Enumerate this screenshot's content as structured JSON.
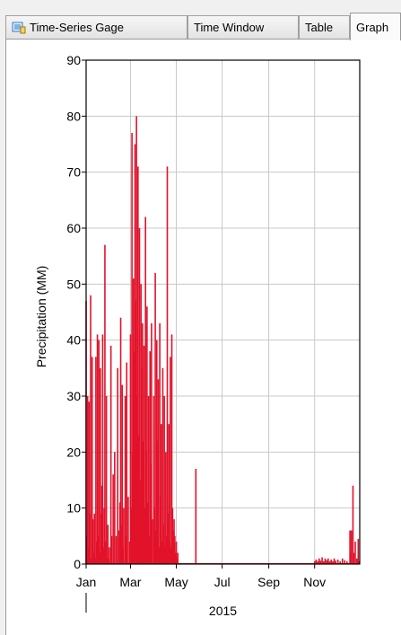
{
  "tabs": [
    {
      "label": "Time-Series Gage",
      "icon": "gage-icon",
      "active": false
    },
    {
      "label": "Time Window",
      "active": false
    },
    {
      "label": "Table",
      "active": false
    },
    {
      "label": "Graph",
      "active": true
    }
  ],
  "colors": {
    "series": "#e2122b",
    "grid": "#c8c8c8"
  },
  "chart_data": {
    "type": "bar",
    "ylabel": "Precipitation (MM)",
    "ylim": [
      0,
      90
    ],
    "yticks": [
      0,
      10,
      20,
      30,
      40,
      50,
      60,
      70,
      80,
      90
    ],
    "xlim": [
      "2015-01-01",
      "2015-12-31"
    ],
    "xticks": [
      {
        "date": "2015-01-01",
        "label": "Jan"
      },
      {
        "date": "2015-03-01",
        "label": "Mar"
      },
      {
        "date": "2015-05-01",
        "label": "May"
      },
      {
        "date": "2015-07-01",
        "label": "Jul"
      },
      {
        "date": "2015-09-01",
        "label": "Sep"
      },
      {
        "date": "2015-11-01",
        "label": "Nov"
      }
    ],
    "year_label": "2015",
    "grid": true,
    "series": [
      {
        "values": [
          [
            "2015-01-01",
            47
          ],
          [
            "2015-01-02",
            5
          ],
          [
            "2015-01-03",
            30
          ],
          [
            "2015-01-04",
            3
          ],
          [
            "2015-01-05",
            29
          ],
          [
            "2015-01-06",
            9
          ],
          [
            "2015-01-07",
            48
          ],
          [
            "2015-01-08",
            1
          ],
          [
            "2015-01-09",
            37
          ],
          [
            "2015-01-10",
            8
          ],
          [
            "2015-01-11",
            2
          ],
          [
            "2015-01-12",
            9
          ],
          [
            "2015-01-13",
            1
          ],
          [
            "2015-01-14",
            37
          ],
          [
            "2015-01-15",
            4
          ],
          [
            "2015-01-16",
            41
          ],
          [
            "2015-01-17",
            5
          ],
          [
            "2015-01-18",
            40
          ],
          [
            "2015-01-19",
            2
          ],
          [
            "2015-01-20",
            35
          ],
          [
            "2015-01-21",
            9
          ],
          [
            "2015-01-22",
            14
          ],
          [
            "2015-01-23",
            41
          ],
          [
            "2015-01-24",
            3
          ],
          [
            "2015-01-25",
            10
          ],
          [
            "2015-01-26",
            57
          ],
          [
            "2015-01-27",
            4
          ],
          [
            "2015-01-28",
            30
          ],
          [
            "2015-01-29",
            1
          ],
          [
            "2015-01-30",
            7
          ],
          [
            "2015-01-31",
            1
          ],
          [
            "2015-02-01",
            3
          ],
          [
            "2015-02-03",
            39
          ],
          [
            "2015-02-04",
            5
          ],
          [
            "2015-02-06",
            16
          ],
          [
            "2015-02-08",
            20
          ],
          [
            "2015-02-10",
            5
          ],
          [
            "2015-02-12",
            35
          ],
          [
            "2015-02-14",
            6
          ],
          [
            "2015-02-15",
            11
          ],
          [
            "2015-02-16",
            44
          ],
          [
            "2015-02-17",
            7
          ],
          [
            "2015-02-18",
            32
          ],
          [
            "2015-02-19",
            3
          ],
          [
            "2015-02-20",
            10
          ],
          [
            "2015-02-22",
            30
          ],
          [
            "2015-02-23",
            5
          ],
          [
            "2015-02-24",
            36
          ],
          [
            "2015-02-26",
            12
          ],
          [
            "2015-02-28",
            4
          ],
          [
            "2015-03-01",
            41
          ],
          [
            "2015-03-02",
            10
          ],
          [
            "2015-03-03",
            77
          ],
          [
            "2015-03-04",
            20
          ],
          [
            "2015-03-05",
            51
          ],
          [
            "2015-03-06",
            38
          ],
          [
            "2015-03-07",
            75
          ],
          [
            "2015-03-08",
            47
          ],
          [
            "2015-03-09",
            80
          ],
          [
            "2015-03-10",
            30
          ],
          [
            "2015-03-11",
            71
          ],
          [
            "2015-03-12",
            23
          ],
          [
            "2015-03-13",
            60
          ],
          [
            "2015-03-14",
            15
          ],
          [
            "2015-03-15",
            50
          ],
          [
            "2015-03-16",
            35
          ],
          [
            "2015-03-17",
            43
          ],
          [
            "2015-03-18",
            22
          ],
          [
            "2015-03-19",
            39
          ],
          [
            "2015-03-20",
            10
          ],
          [
            "2015-03-21",
            62
          ],
          [
            "2015-03-22",
            20
          ],
          [
            "2015-03-23",
            46
          ],
          [
            "2015-03-24",
            11
          ],
          [
            "2015-03-25",
            30
          ],
          [
            "2015-03-26",
            5
          ],
          [
            "2015-03-27",
            38
          ],
          [
            "2015-03-28",
            18
          ],
          [
            "2015-03-29",
            43
          ],
          [
            "2015-03-30",
            8
          ],
          [
            "2015-04-01",
            30
          ],
          [
            "2015-04-02",
            10
          ],
          [
            "2015-04-03",
            52
          ],
          [
            "2015-04-04",
            6
          ],
          [
            "2015-04-05",
            40
          ],
          [
            "2015-04-06",
            22
          ],
          [
            "2015-04-07",
            33
          ],
          [
            "2015-04-08",
            3
          ],
          [
            "2015-04-09",
            43
          ],
          [
            "2015-04-10",
            12
          ],
          [
            "2015-04-11",
            25
          ],
          [
            "2015-04-12",
            4
          ],
          [
            "2015-04-13",
            35
          ],
          [
            "2015-04-14",
            7
          ],
          [
            "2015-04-15",
            30
          ],
          [
            "2015-04-16",
            3
          ],
          [
            "2015-04-17",
            20
          ],
          [
            "2015-04-18",
            5
          ],
          [
            "2015-04-19",
            71
          ],
          [
            "2015-04-20",
            9
          ],
          [
            "2015-04-21",
            25
          ],
          [
            "2015-04-22",
            4
          ],
          [
            "2015-04-23",
            37
          ],
          [
            "2015-04-24",
            3
          ],
          [
            "2015-04-25",
            41
          ],
          [
            "2015-04-26",
            10
          ],
          [
            "2015-04-27",
            6
          ],
          [
            "2015-04-28",
            8
          ],
          [
            "2015-04-29",
            5
          ],
          [
            "2015-04-30",
            2
          ],
          [
            "2015-05-01",
            4
          ],
          [
            "2015-05-02",
            1
          ],
          [
            "2015-05-03",
            2
          ],
          [
            "2015-05-27",
            17
          ],
          [
            "2015-11-01",
            0.5
          ],
          [
            "2015-11-03",
            0.8
          ],
          [
            "2015-11-05",
            0.5
          ],
          [
            "2015-11-07",
            1
          ],
          [
            "2015-11-09",
            0.6
          ],
          [
            "2015-11-11",
            1.2
          ],
          [
            "2015-11-13",
            0.5
          ],
          [
            "2015-11-15",
            1
          ],
          [
            "2015-11-17",
            0.7
          ],
          [
            "2015-11-19",
            1
          ],
          [
            "2015-11-21",
            0.5
          ],
          [
            "2015-11-23",
            0.8
          ],
          [
            "2015-11-25",
            0.5
          ],
          [
            "2015-11-27",
            1
          ],
          [
            "2015-11-29",
            0.6
          ],
          [
            "2015-12-02",
            0.8
          ],
          [
            "2015-12-05",
            0.5
          ],
          [
            "2015-12-08",
            1
          ],
          [
            "2015-12-11",
            0.7
          ],
          [
            "2015-12-14",
            0.5
          ],
          [
            "2015-12-18",
            6
          ],
          [
            "2015-12-19",
            2
          ],
          [
            "2015-12-20",
            6
          ],
          [
            "2015-12-22",
            14
          ],
          [
            "2015-12-23",
            2
          ],
          [
            "2015-12-25",
            4
          ],
          [
            "2015-12-27",
            1
          ],
          [
            "2015-12-28",
            0.5
          ],
          [
            "2015-12-29",
            4.5
          ],
          [
            "2015-12-30",
            0.5
          ]
        ]
      }
    ]
  }
}
